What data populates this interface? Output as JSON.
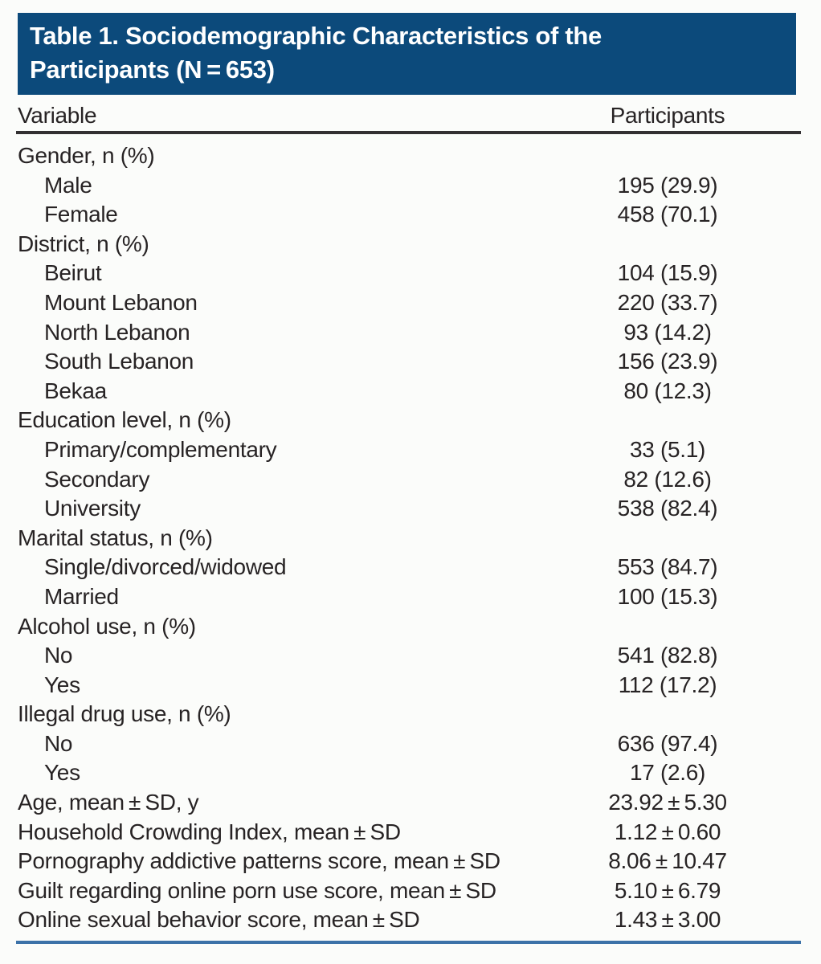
{
  "colors": {
    "page_bg": "#fbfcfa",
    "title_bar_bg": "#0c4a7b",
    "title_text": "#ffffff",
    "body_text": "#272324",
    "header_rule": "#333032",
    "bottom_rule": "#3c72a8"
  },
  "table": {
    "title": "Table 1. Sociodemographic Characteristics of the Participants (N = 653)",
    "columns": [
      "Variable",
      "Participants"
    ],
    "rows": [
      {
        "label": "Gender, n (%)",
        "value": "",
        "indent": 0
      },
      {
        "label": "Male",
        "value": "195 (29.9)",
        "indent": 1
      },
      {
        "label": "Female",
        "value": "458 (70.1)",
        "indent": 1
      },
      {
        "label": "District, n (%)",
        "value": "",
        "indent": 0
      },
      {
        "label": "Beirut",
        "value": "104 (15.9)",
        "indent": 1
      },
      {
        "label": "Mount Lebanon",
        "value": "220 (33.7)",
        "indent": 1
      },
      {
        "label": "North Lebanon",
        "value": "93 (14.2)",
        "indent": 1
      },
      {
        "label": "South Lebanon",
        "value": "156 (23.9)",
        "indent": 1
      },
      {
        "label": "Bekaa",
        "value": "80 (12.3)",
        "indent": 1
      },
      {
        "label": "Education level, n (%)",
        "value": "",
        "indent": 0
      },
      {
        "label": "Primary/complementary",
        "value": "33 (5.1)",
        "indent": 1
      },
      {
        "label": "Secondary",
        "value": "82 (12.6)",
        "indent": 1
      },
      {
        "label": "University",
        "value": "538 (82.4)",
        "indent": 1
      },
      {
        "label": "Marital status, n (%)",
        "value": "",
        "indent": 0
      },
      {
        "label": "Single/divorced/widowed",
        "value": "553 (84.7)",
        "indent": 1
      },
      {
        "label": "Married",
        "value": "100 (15.3)",
        "indent": 1
      },
      {
        "label": "Alcohol use, n (%)",
        "value": "",
        "indent": 0
      },
      {
        "label": "No",
        "value": "541 (82.8)",
        "indent": 1
      },
      {
        "label": "Yes",
        "value": "112 (17.2)",
        "indent": 1
      },
      {
        "label": "Illegal drug use, n (%)",
        "value": "",
        "indent": 0
      },
      {
        "label": "No",
        "value": "636 (97.4)",
        "indent": 1
      },
      {
        "label": "Yes",
        "value": "17 (2.6)",
        "indent": 1
      },
      {
        "label": "Age, mean ± SD, y",
        "value": "23.92 ± 5.30",
        "indent": 0
      },
      {
        "label": "Household Crowding Index, mean ± SD",
        "value": "1.12 ± 0.60",
        "indent": 0
      },
      {
        "label": "Pornography addictive patterns score, mean ± SD",
        "value": "8.06 ± 10.47",
        "indent": 0
      },
      {
        "label": "Guilt regarding online porn use score, mean ± SD",
        "value": "5.10 ± 6.79",
        "indent": 0
      },
      {
        "label": "Online sexual behavior score, mean ± SD",
        "value": "1.43 ± 3.00",
        "indent": 0
      }
    ]
  }
}
